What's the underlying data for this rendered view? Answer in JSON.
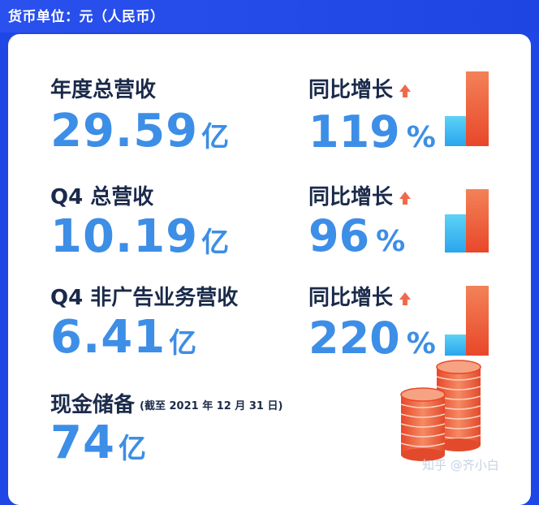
{
  "header": {
    "currency_label": "货币单位：元（人民币）"
  },
  "metrics": [
    {
      "label": "年度总营收",
      "value": "29.59",
      "unit": "亿",
      "growth_label": "同比增长",
      "growth_value": "119",
      "growth_unit": "%",
      "comparison_ratio": 0.4
    },
    {
      "label": "Q4 总营收",
      "value": "10.19",
      "unit": "亿",
      "growth_label": "同比增长",
      "growth_value": "96",
      "growth_unit": "%",
      "comparison_ratio": 0.6
    },
    {
      "label": "Q4 非广告业务营收",
      "value": "6.41",
      "unit": "亿",
      "growth_label": "同比增长",
      "growth_value": "220",
      "growth_unit": "%",
      "comparison_ratio": 0.3
    }
  ],
  "cash": {
    "label": "现金储备",
    "note": "(截至 2021 年 12 月 31 日)",
    "value": "74",
    "unit": "亿"
  },
  "watermark": "知乎 @齐小白",
  "colors": {
    "header_bg": "#1f47e6",
    "value_blue": "#3d8ee6",
    "bar_blue": "#2aa5ee",
    "bar_red": "#e8472a"
  }
}
